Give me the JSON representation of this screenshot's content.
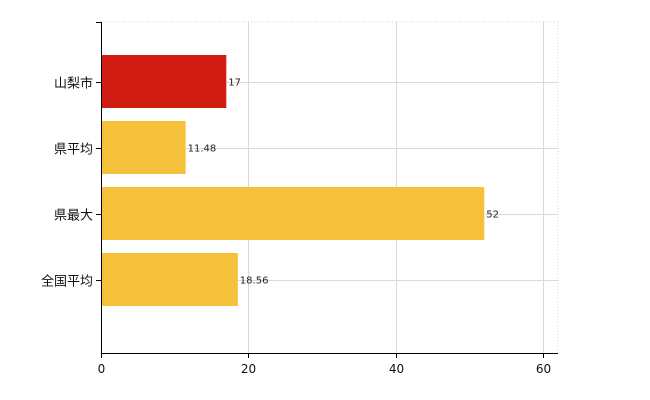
{
  "chart_data": {
    "type": "bar",
    "orientation": "horizontal",
    "categories": [
      "山梨市",
      "県平均",
      "県最大",
      "全国平均"
    ],
    "values": [
      17,
      11.48,
      52,
      18.56
    ],
    "value_labels": [
      "17",
      "11.48",
      "52",
      "18.56"
    ],
    "bar_colors": [
      "#d01c11",
      "#f5c13b",
      "#f5c13b",
      "#f5c13b"
    ],
    "xlim": [
      0,
      62
    ],
    "xticks": [
      0,
      20,
      40,
      60
    ],
    "xtick_labels": [
      "0",
      "20",
      "40",
      "60"
    ],
    "grid": true,
    "grid_color": "#d9d9d9",
    "axis_color": "#000000",
    "title": "",
    "xlabel": "",
    "ylabel": ""
  }
}
